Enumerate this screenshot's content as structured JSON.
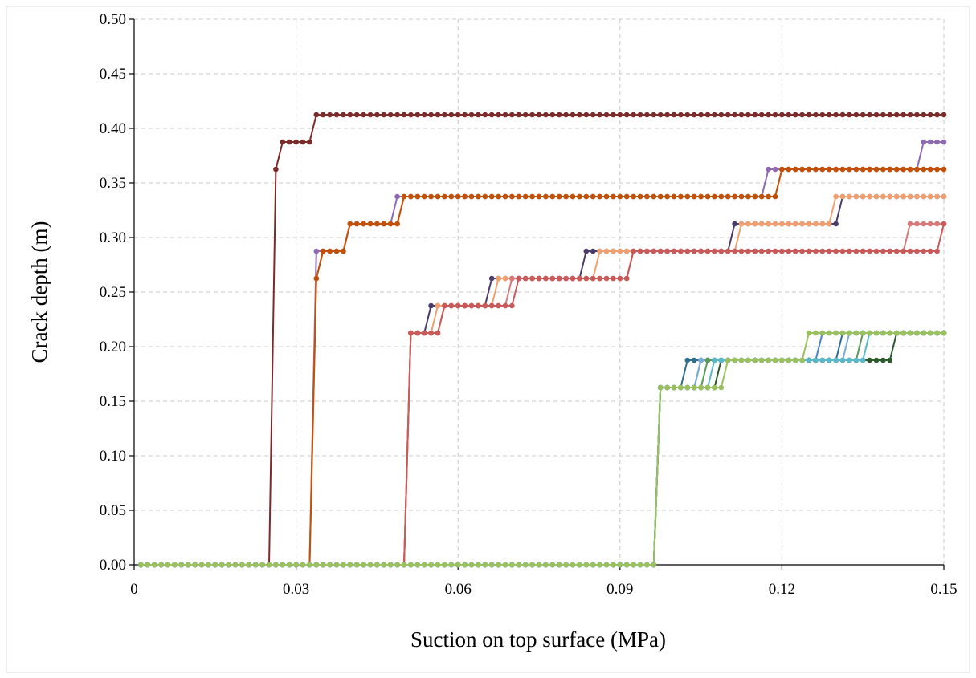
{
  "chart_data": {
    "type": "line",
    "xlabel": "Suction on top surface (MPa)",
    "ylabel": "Crack depth (m)",
    "xlim": [
      0,
      0.15
    ],
    "ylim": [
      0,
      0.5
    ],
    "x_ticks": [
      "0",
      "0.03",
      "0.06",
      "0.09",
      "0.12",
      "0.15"
    ],
    "y_ticks": [
      "0.00",
      "0.05",
      "0.10",
      "0.15",
      "0.20",
      "0.25",
      "0.30",
      "0.35",
      "0.40",
      "0.45",
      "0.50"
    ],
    "grid": true,
    "legend": "none",
    "markers": true,
    "point_step": 0.00125,
    "series": [
      {
        "color": "#7b2b2b",
        "steps": [
          [
            0,
            0
          ],
          [
            0.0255,
            0.3625
          ],
          [
            0.0265,
            0.3875
          ],
          [
            0.033,
            0.4125
          ]
        ]
      },
      {
        "color": "#8e6bb1",
        "steps": [
          [
            0,
            0
          ],
          [
            0.033,
            0.2875
          ],
          [
            0.039,
            0.3125
          ],
          [
            0.0485,
            0.3375
          ],
          [
            0.117,
            0.3625
          ],
          [
            0.1455,
            0.3875
          ]
        ]
      },
      {
        "color": "#f0a050",
        "steps": [
          [
            0,
            0
          ],
          [
            0.033,
            0.2625
          ],
          [
            0.034,
            0.2875
          ],
          [
            0.04,
            0.3125
          ],
          [
            0.049,
            0.3375
          ],
          [
            0.119,
            0.3625
          ]
        ]
      },
      {
        "color": "#c0500a",
        "steps": [
          [
            0,
            0
          ],
          [
            0.033,
            0.2625
          ],
          [
            0.034,
            0.2875
          ],
          [
            0.04,
            0.3125
          ],
          [
            0.049,
            0.3375
          ],
          [
            0.12,
            0.3625
          ]
        ]
      },
      {
        "color": "#4b3b6b",
        "steps": [
          [
            0,
            0
          ],
          [
            0.0505,
            0.2125
          ],
          [
            0.054,
            0.2375
          ],
          [
            0.066,
            0.2625
          ],
          [
            0.083,
            0.2875
          ],
          [
            0.111,
            0.3125
          ],
          [
            0.1305,
            0.3375
          ]
        ]
      },
      {
        "color": "#f0a070",
        "steps": [
          [
            0,
            0
          ],
          [
            0.0505,
            0.2125
          ],
          [
            0.0555,
            0.2375
          ],
          [
            0.0675,
            0.2625
          ],
          [
            0.0855,
            0.2875
          ],
          [
            0.1125,
            0.3125
          ],
          [
            0.129,
            0.3375
          ]
        ]
      },
      {
        "color": "#d87878",
        "steps": [
          [
            0,
            0
          ],
          [
            0.0505,
            0.2125
          ],
          [
            0.057,
            0.2375
          ],
          [
            0.07,
            0.2625
          ],
          [
            0.0915,
            0.2875
          ],
          [
            0.1435,
            0.3125
          ]
        ]
      },
      {
        "color": "#c85a5a",
        "steps": [
          [
            0,
            0
          ],
          [
            0.0505,
            0.2125
          ],
          [
            0.0575,
            0.2375
          ],
          [
            0.0705,
            0.2625
          ],
          [
            0.092,
            0.2875
          ],
          [
            0.1495,
            0.3125
          ]
        ]
      },
      {
        "color": "#2e6e8e",
        "steps": [
          [
            0,
            0
          ],
          [
            0.0975,
            0.1625
          ],
          [
            0.1025,
            0.1875
          ],
          [
            0.1305,
            0.2125
          ]
        ]
      },
      {
        "color": "#4a80c0",
        "steps": [
          [
            0,
            0
          ],
          [
            0.0975,
            0.1625
          ],
          [
            0.104,
            0.1875
          ],
          [
            0.1265,
            0.2125
          ]
        ]
      },
      {
        "color": "#7aaad8",
        "steps": [
          [
            0,
            0
          ],
          [
            0.0975,
            0.1625
          ],
          [
            0.105,
            0.1875
          ],
          [
            0.1325,
            0.2125
          ]
        ]
      },
      {
        "color": "#5a9a5a",
        "steps": [
          [
            0,
            0
          ],
          [
            0.0975,
            0.1625
          ],
          [
            0.106,
            0.1875
          ],
          [
            0.134,
            0.2125
          ]
        ]
      },
      {
        "color": "#2a5a2a",
        "steps": [
          [
            0,
            0
          ],
          [
            0.0975,
            0.1625
          ],
          [
            0.1085,
            0.1875
          ],
          [
            0.1405,
            0.2125
          ]
        ]
      },
      {
        "color": "#5ab8c8",
        "steps": [
          [
            0,
            0
          ],
          [
            0.0975,
            0.1625
          ],
          [
            0.107,
            0.1875
          ],
          [
            0.136,
            0.2125
          ]
        ]
      },
      {
        "color": "#9ac060",
        "steps": [
          [
            0,
            0
          ],
          [
            0.0975,
            0.1625
          ],
          [
            0.11,
            0.1875
          ],
          [
            0.124,
            0.2125
          ]
        ]
      }
    ]
  }
}
